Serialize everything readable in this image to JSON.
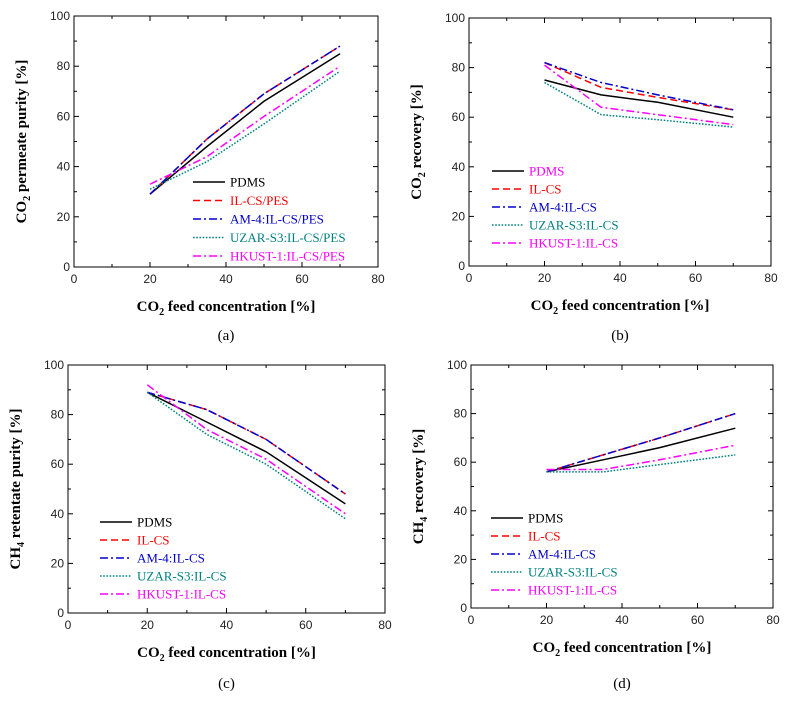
{
  "series_styles": {
    "PDMS": {
      "color": "#000000",
      "dash": ""
    },
    "IL-CS": {
      "color": "#ff0000",
      "dash": "7,4"
    },
    "AM-4": {
      "color": "#0000cc",
      "dash": "8,3,2,3"
    },
    "UZAR-S3": {
      "color": "#008080",
      "dash": "1.6,1.6"
    },
    "HKUST-1": {
      "color": "#ff00ff",
      "dash": "8,3,2,3"
    }
  },
  "chart_data": [
    {
      "type": "line",
      "panel_label": "(a)",
      "xlabel": {
        "main": "CO",
        "sub": "2",
        "rest": " feed concentration [%]"
      },
      "ylabel": {
        "main": "CO",
        "sub": "2",
        "rest": " permeate purity [%]"
      },
      "xlim": [
        0,
        80
      ],
      "ylim": [
        0,
        100
      ],
      "xticks": [
        0,
        20,
        40,
        60,
        80
      ],
      "yticks": [
        0,
        20,
        40,
        60,
        80,
        100
      ],
      "x": [
        20,
        35,
        50,
        70
      ],
      "legend_position": "lower-right",
      "series": [
        {
          "name": "PDMS",
          "style": "PDMS",
          "legend_color": "#000000",
          "values": [
            29,
            48,
            66,
            85
          ]
        },
        {
          "name": "IL-CS/PES",
          "style": "IL-CS",
          "legend_color": "#ff0000",
          "values": [
            29,
            51,
            69,
            88
          ]
        },
        {
          "name": "AM-4:IL-CS/PES",
          "style": "AM-4",
          "legend_color": "#0000cc",
          "values": [
            29,
            51,
            69,
            88
          ]
        },
        {
          "name": "UZAR-S3:IL-CS/PES",
          "style": "UZAR-S3",
          "legend_color": "#008080",
          "values": [
            31,
            42,
            57,
            78
          ]
        },
        {
          "name": "HKUST-1:IL-CS/PES",
          "style": "HKUST-1",
          "legend_color": "#ff00ff",
          "values": [
            33,
            44,
            60,
            80
          ]
        }
      ]
    },
    {
      "type": "line",
      "panel_label": "(b)",
      "xlabel": {
        "main": "CO",
        "sub": "2",
        "rest": " feed concentration [%]"
      },
      "ylabel": {
        "main": "CO",
        "sub": "2",
        "rest": " recovery [%]"
      },
      "xlim": [
        0,
        80
      ],
      "ylim": [
        0,
        100
      ],
      "xticks": [
        0,
        20,
        40,
        60,
        80
      ],
      "yticks": [
        0,
        20,
        40,
        60,
        80,
        100
      ],
      "x": [
        20,
        35,
        50,
        70
      ],
      "legend_position": "lower-left",
      "series": [
        {
          "name": "PDMS",
          "style": "PDMS",
          "legend_color": "#ff00ff",
          "values": [
            75,
            69,
            66,
            60
          ]
        },
        {
          "name": "IL-CS",
          "style": "IL-CS",
          "legend_color": "#ff0000",
          "values": [
            82,
            72,
            68,
            63
          ]
        },
        {
          "name": "AM-4:IL-CS",
          "style": "AM-4",
          "legend_color": "#0000cc",
          "values": [
            82,
            74,
            69,
            63
          ]
        },
        {
          "name": "UZAR-S3:IL-CS",
          "style": "UZAR-S3",
          "legend_color": "#008080",
          "values": [
            74,
            61,
            59,
            56
          ]
        },
        {
          "name": "HKUST-1:IL-CS",
          "style": "HKUST-1",
          "legend_color": "#ff00ff",
          "values": [
            81,
            64,
            61,
            57
          ]
        }
      ]
    },
    {
      "type": "line",
      "panel_label": "(c)",
      "xlabel": {
        "main": "CO",
        "sub": "2",
        "rest": " feed concentration [%]"
      },
      "ylabel": {
        "main": "CH",
        "sub": "4",
        "rest": " retentate purity [%]"
      },
      "xlim": [
        0,
        80
      ],
      "ylim": [
        0,
        100
      ],
      "xticks": [
        0,
        20,
        40,
        60,
        80
      ],
      "yticks": [
        0,
        20,
        40,
        60,
        80,
        100
      ],
      "x": [
        20,
        35,
        50,
        70
      ],
      "legend_position": "lower-left",
      "series": [
        {
          "name": "PDMS",
          "style": "PDMS",
          "legend_color": "#000000",
          "values": [
            89,
            77,
            65,
            44
          ]
        },
        {
          "name": "IL-CS",
          "style": "IL-CS",
          "legend_color": "#ff0000",
          "values": [
            89,
            82,
            70,
            48
          ]
        },
        {
          "name": "AM-4:IL-CS",
          "style": "AM-4",
          "legend_color": "#0000cc",
          "values": [
            89,
            82,
            70,
            48
          ]
        },
        {
          "name": "UZAR-S3:IL-CS",
          "style": "UZAR-S3",
          "legend_color": "#008080",
          "values": [
            89,
            72,
            60,
            38
          ]
        },
        {
          "name": "HKUST-1:IL-CS",
          "style": "HKUST-1",
          "legend_color": "#ff00ff",
          "values": [
            92,
            74,
            62,
            40
          ]
        }
      ]
    },
    {
      "type": "line",
      "panel_label": "(d)",
      "xlabel": {
        "main": "CO",
        "sub": "2",
        "rest": " feed concentration [%]"
      },
      "ylabel": {
        "main": "CH",
        "sub": "4",
        "rest": " recovery [%]"
      },
      "xlim": [
        0,
        80
      ],
      "ylim": [
        0,
        100
      ],
      "xticks": [
        0,
        20,
        40,
        60,
        80
      ],
      "yticks": [
        0,
        20,
        40,
        60,
        80,
        100
      ],
      "x": [
        20,
        35,
        50,
        70
      ],
      "legend_position": "lower-left",
      "series": [
        {
          "name": "PDMS",
          "style": "PDMS",
          "legend_color": "#000000",
          "values": [
            56,
            61,
            66,
            74
          ]
        },
        {
          "name": "IL-CS",
          "style": "IL-CS",
          "legend_color": "#ff0000",
          "values": [
            56,
            63,
            70,
            80
          ]
        },
        {
          "name": "AM-4:IL-CS",
          "style": "AM-4",
          "legend_color": "#0000cc",
          "values": [
            56,
            63,
            70,
            80
          ]
        },
        {
          "name": "UZAR-S3:IL-CS",
          "style": "UZAR-S3",
          "legend_color": "#008080",
          "values": [
            56,
            56,
            59,
            63
          ]
        },
        {
          "name": "HKUST-1:IL-CS",
          "style": "HKUST-1",
          "legend_color": "#ff00ff",
          "values": [
            57,
            57,
            61,
            67
          ]
        }
      ]
    }
  ]
}
